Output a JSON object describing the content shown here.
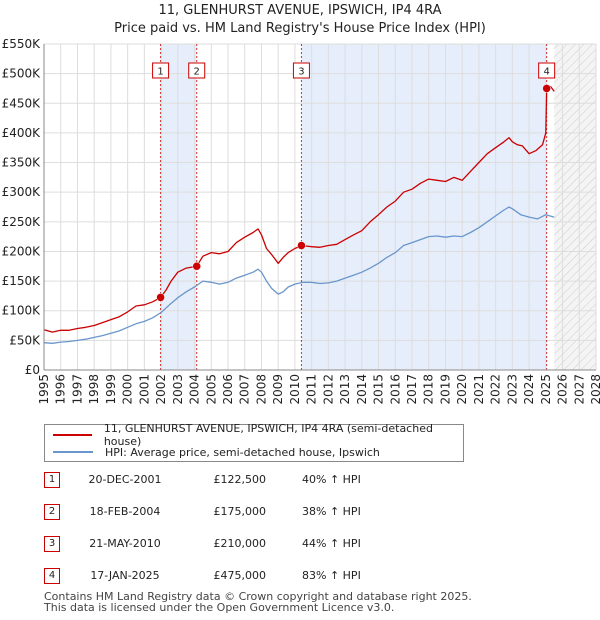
{
  "title_line1": "11, GLENHURST AVENUE, IPSWICH, IP4 4RA",
  "title_line2": "Price paid vs. HM Land Registry's House Price Index (HPI)",
  "colors": {
    "property": "#cc0000",
    "hpi": "#6a96cc",
    "span_fill": "#e6eefb",
    "marker_border": "#cc0000"
  },
  "chart_data": {
    "type": "line",
    "title": "Price paid vs. HM Land Registry's House Price Index (HPI)",
    "xlabel": "",
    "ylabel": "",
    "xlim": [
      1995,
      2028
    ],
    "ylim": [
      0,
      550000
    ],
    "yticks": [
      {
        "value": 0,
        "label": "£0"
      },
      {
        "value": 50000,
        "label": "£50K"
      },
      {
        "value": 100000,
        "label": "£100K"
      },
      {
        "value": 150000,
        "label": "£150K"
      },
      {
        "value": 200000,
        "label": "£200K"
      },
      {
        "value": 250000,
        "label": "£250K"
      },
      {
        "value": 300000,
        "label": "£300K"
      },
      {
        "value": 350000,
        "label": "£350K"
      },
      {
        "value": 400000,
        "label": "£400K"
      },
      {
        "value": 450000,
        "label": "£450K"
      },
      {
        "value": 500000,
        "label": "£500K"
      },
      {
        "value": 550000,
        "label": "£550K"
      }
    ],
    "xticks": [
      "1995",
      "1996",
      "1997",
      "1998",
      "1999",
      "2000",
      "2001",
      "2002",
      "2003",
      "2004",
      "2005",
      "2006",
      "2007",
      "2008",
      "2009",
      "2010",
      "2011",
      "2012",
      "2013",
      "2014",
      "2015",
      "2016",
      "2017",
      "2018",
      "2019",
      "2020",
      "2021",
      "2022",
      "2023",
      "2024",
      "2025",
      "2026",
      "2027",
      "2028"
    ],
    "forecast_from": 2025.5,
    "shaded_spans": [
      [
        2001.97,
        2004.13
      ],
      [
        2010.39,
        2025.05
      ]
    ],
    "series": [
      {
        "name": "11, GLENHURST AVENUE, IPSWICH, IP4 4RA (semi-detached house)",
        "x": [
          1995.0,
          1995.5,
          1996.0,
          1996.5,
          1997.0,
          1997.5,
          1998.0,
          1998.5,
          1999.0,
          1999.5,
          2000.0,
          2000.5,
          2001.0,
          2001.5,
          2001.97,
          2002.3,
          2002.6,
          2003.0,
          2003.5,
          2004.13,
          2004.5,
          2005.0,
          2005.5,
          2006.0,
          2006.5,
          2007.0,
          2007.5,
          2007.8,
          2008.0,
          2008.3,
          2008.6,
          2009.0,
          2009.3,
          2009.6,
          2010.0,
          2010.39,
          2010.7,
          2011.0,
          2011.5,
          2012.0,
          2012.5,
          2013.0,
          2013.5,
          2014.0,
          2014.5,
          2015.0,
          2015.5,
          2016.0,
          2016.5,
          2017.0,
          2017.5,
          2018.0,
          2018.5,
          2019.0,
          2019.5,
          2020.0,
          2020.5,
          2021.0,
          2021.5,
          2022.0,
          2022.5,
          2022.8,
          2023.0,
          2023.3,
          2023.6,
          2024.0,
          2024.4,
          2024.8,
          2025.0,
          2025.05,
          2025.3,
          2025.5
        ],
        "values": [
          68000,
          64000,
          67000,
          67000,
          70000,
          72000,
          75000,
          80000,
          85000,
          90000,
          98000,
          108000,
          110000,
          115000,
          122500,
          135000,
          150000,
          165000,
          172000,
          175000,
          192000,
          198000,
          196000,
          200000,
          215000,
          224000,
          232000,
          238000,
          228000,
          205000,
          195000,
          180000,
          190000,
          198000,
          205000,
          210000,
          209000,
          208000,
          207000,
          210000,
          212000,
          220000,
          228000,
          235000,
          250000,
          262000,
          275000,
          285000,
          300000,
          305000,
          315000,
          322000,
          320000,
          318000,
          325000,
          320000,
          335000,
          350000,
          365000,
          375000,
          385000,
          392000,
          385000,
          380000,
          378000,
          365000,
          370000,
          380000,
          400000,
          475000,
          478000,
          470000
        ]
      },
      {
        "name": "HPI: Average price, semi-detached house, Ipswich",
        "x": [
          1995.0,
          1995.5,
          1996.0,
          1996.5,
          1997.0,
          1997.5,
          1998.0,
          1998.5,
          1999.0,
          1999.5,
          2000.0,
          2000.5,
          2001.0,
          2001.5,
          2002.0,
          2002.5,
          2003.0,
          2003.5,
          2004.0,
          2004.5,
          2005.0,
          2005.5,
          2006.0,
          2006.5,
          2007.0,
          2007.5,
          2007.8,
          2008.0,
          2008.3,
          2008.6,
          2009.0,
          2009.3,
          2009.6,
          2010.0,
          2010.5,
          2011.0,
          2011.5,
          2012.0,
          2012.5,
          2013.0,
          2013.5,
          2014.0,
          2014.5,
          2015.0,
          2015.5,
          2016.0,
          2016.5,
          2017.0,
          2017.5,
          2018.0,
          2018.5,
          2019.0,
          2019.5,
          2020.0,
          2020.5,
          2021.0,
          2021.5,
          2022.0,
          2022.5,
          2022.8,
          2023.0,
          2023.5,
          2024.0,
          2024.5,
          2025.0,
          2025.5
        ],
        "values": [
          46000,
          45000,
          47000,
          48000,
          50000,
          52000,
          55000,
          58000,
          62000,
          66000,
          72000,
          78000,
          82000,
          88000,
          97000,
          110000,
          122000,
          132000,
          140000,
          150000,
          148000,
          145000,
          148000,
          155000,
          160000,
          165000,
          170000,
          165000,
          150000,
          138000,
          128000,
          132000,
          140000,
          145000,
          148000,
          148000,
          146000,
          147000,
          150000,
          155000,
          160000,
          165000,
          172000,
          180000,
          190000,
          198000,
          210000,
          215000,
          220000,
          225000,
          226000,
          224000,
          226000,
          225000,
          232000,
          240000,
          250000,
          260000,
          270000,
          275000,
          272000,
          262000,
          258000,
          255000,
          262000,
          258000
        ]
      }
    ],
    "sales": [
      {
        "label": "1",
        "x": 2001.97,
        "value": 122500
      },
      {
        "label": "2",
        "x": 2004.13,
        "value": 175000
      },
      {
        "label": "3",
        "x": 2010.39,
        "value": 210000
      },
      {
        "label": "4",
        "x": 2025.05,
        "value": 475000
      }
    ]
  },
  "legend": {
    "property": "11, GLENHURST AVENUE, IPSWICH, IP4 4RA (semi-detached house)",
    "hpi": "HPI: Average price, semi-detached house, Ipswich"
  },
  "transactions": [
    {
      "num": "1",
      "date": "20-DEC-2001",
      "price": "£122,500",
      "hpi": "40% ↑ HPI"
    },
    {
      "num": "2",
      "date": "18-FEB-2004",
      "price": "£175,000",
      "hpi": "38% ↑ HPI"
    },
    {
      "num": "3",
      "date": "21-MAY-2010",
      "price": "£210,000",
      "hpi": "44% ↑ HPI"
    },
    {
      "num": "4",
      "date": "17-JAN-2025",
      "price": "£475,000",
      "hpi": "83% ↑ HPI"
    }
  ],
  "footer": {
    "line1": "Contains HM Land Registry data © Crown copyright and database right 2025.",
    "line2": "This data is licensed under the Open Government Licence v3.0."
  }
}
